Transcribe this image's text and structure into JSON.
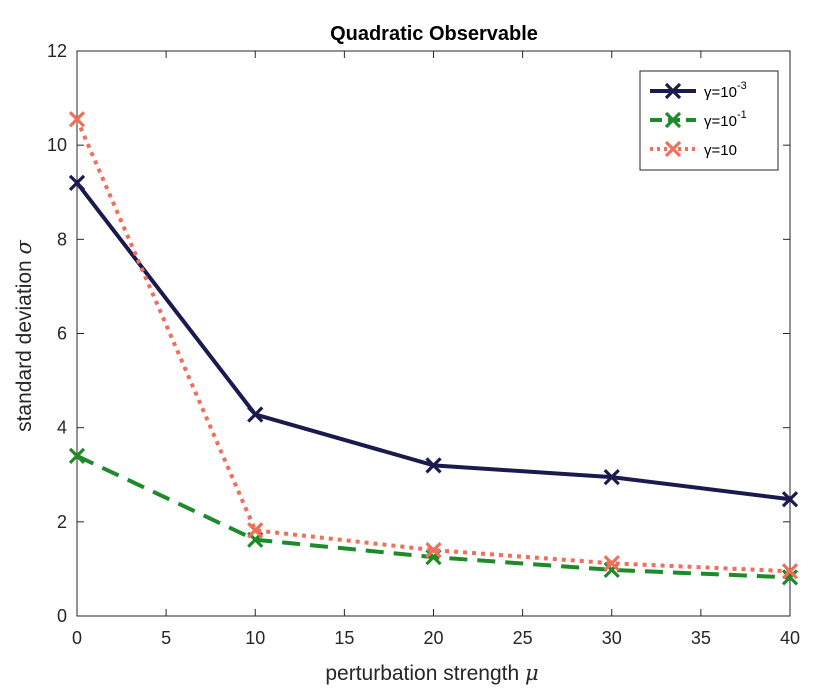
{
  "chart_data": {
    "type": "line",
    "title": "Quadratic Observable",
    "xlabel": "perturbation strength",
    "xlabel_symbol": "μ",
    "ylabel": "standard deviation",
    "ylabel_symbol": "σ",
    "x": [
      0,
      10,
      20,
      30,
      40
    ],
    "xlim": [
      0,
      40
    ],
    "ylim": [
      0,
      12
    ],
    "xticks": [
      "0",
      "5",
      "10",
      "15",
      "20",
      "25",
      "30",
      "35",
      "40"
    ],
    "yticks": [
      "0",
      "2",
      "4",
      "6",
      "8",
      "10",
      "12"
    ],
    "grid": false,
    "legend_position": "top-right",
    "series": [
      {
        "name": "γ=10-3",
        "label_base": "γ=10",
        "label_exp": "-3",
        "values": [
          9.2,
          4.28,
          3.2,
          2.95,
          2.48
        ],
        "color": "#1b1a4f",
        "style": "solid",
        "marker": "x"
      },
      {
        "name": "γ=10-1",
        "label_base": "γ=10",
        "label_exp": "-1",
        "values": [
          3.4,
          1.62,
          1.25,
          0.98,
          0.82
        ],
        "color": "#1f8a2a",
        "style": "dashed",
        "marker": "x"
      },
      {
        "name": "γ=10",
        "label_base": "γ=10",
        "label_exp": "",
        "values": [
          10.55,
          1.82,
          1.4,
          1.12,
          0.95
        ],
        "color": "#ee6f5a",
        "style": "dotted",
        "marker": "x"
      }
    ]
  }
}
